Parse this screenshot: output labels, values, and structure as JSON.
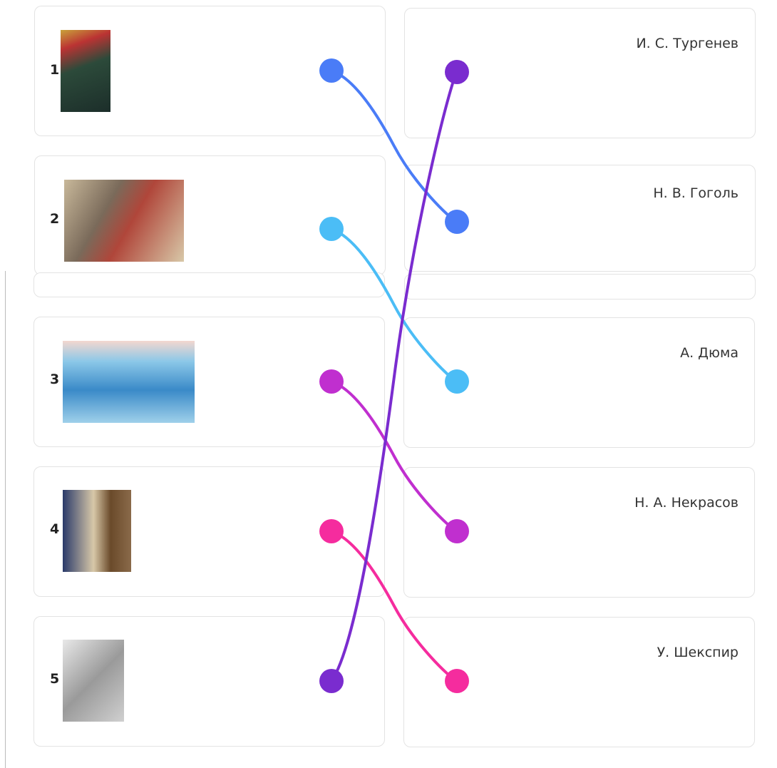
{
  "left_items": [
    {
      "number": "1"
    },
    {
      "number": "2"
    },
    {
      "number": "3"
    },
    {
      "number": "4"
    },
    {
      "number": "5"
    }
  ],
  "right_items": [
    {
      "label": "И. С. Тургенев"
    },
    {
      "label": "Н. В. Гоголь"
    },
    {
      "label": "А. Дюма"
    },
    {
      "label": "Н. А. Некрасов"
    },
    {
      "label": "У. Шекспир"
    }
  ],
  "connections": [
    {
      "from": 0,
      "to": 1,
      "color": "#4a7cf7"
    },
    {
      "from": 1,
      "to": 2,
      "color": "#4bbdf6"
    },
    {
      "from": 2,
      "to": 3,
      "color": "#c02fcf"
    },
    {
      "from": 3,
      "to": 4,
      "color": "#f52c9e"
    },
    {
      "from": 4,
      "to": 0,
      "color": "#7a2ccf"
    }
  ]
}
